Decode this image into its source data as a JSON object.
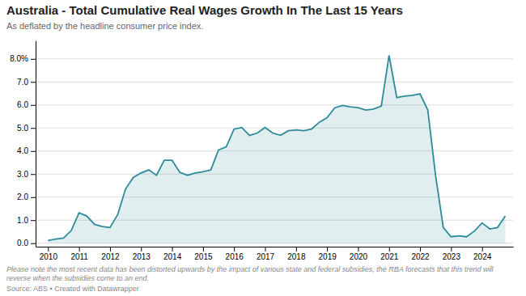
{
  "chart_data": {
    "type": "area",
    "title": "Australia - Total Cumulative Real Wages Growth In The Last 15 Years",
    "subtitle": "As deflated by the headline consumer price index.",
    "footnote": "Please note the most recent data has been distorted upwards by the impact of various state and federal subsidies, the RBA forecasts that this trend will\nreverse when the subsidies come to an end.",
    "source": "Source: ABS • Created with Datawrapper",
    "color": "#2e8b9a",
    "grid": true,
    "x": [
      2010.0,
      2010.25,
      2010.5,
      2010.75,
      2011.0,
      2011.25,
      2011.5,
      2011.75,
      2012.0,
      2012.25,
      2012.5,
      2012.75,
      2013.0,
      2013.25,
      2013.5,
      2013.75,
      2014.0,
      2014.25,
      2014.5,
      2014.75,
      2015.0,
      2015.25,
      2015.5,
      2015.75,
      2016.0,
      2016.25,
      2016.5,
      2016.75,
      2017.0,
      2017.25,
      2017.5,
      2017.75,
      2018.0,
      2018.25,
      2018.5,
      2018.75,
      2019.0,
      2019.25,
      2019.5,
      2019.75,
      2020.0,
      2020.25,
      2020.5,
      2020.75,
      2021.0,
      2021.25,
      2021.5,
      2021.75,
      2022.0,
      2022.25,
      2022.5,
      2022.75,
      2023.0,
      2023.25,
      2023.5,
      2023.75,
      2024.0,
      2024.25,
      2024.5,
      2024.75
    ],
    "values": [
      0.12,
      0.18,
      0.22,
      0.55,
      1.32,
      1.18,
      0.82,
      0.72,
      0.68,
      1.25,
      2.35,
      2.85,
      3.05,
      3.18,
      2.95,
      3.6,
      3.6,
      3.08,
      2.95,
      3.05,
      3.1,
      3.18,
      4.05,
      4.18,
      4.95,
      5.02,
      4.68,
      4.78,
      5.02,
      4.78,
      4.68,
      4.88,
      4.92,
      4.88,
      4.95,
      5.25,
      5.45,
      5.88,
      5.98,
      5.92,
      5.88,
      5.78,
      5.82,
      5.95,
      8.15,
      6.32,
      6.38,
      6.42,
      6.48,
      5.78,
      2.95,
      0.68,
      0.28,
      0.32,
      0.28,
      0.52,
      0.88,
      0.62,
      0.68,
      1.18
    ],
    "xlim": [
      2009.6,
      2025.0
    ],
    "xticks": [
      2010,
      2011,
      2012,
      2013,
      2014,
      2015,
      2016,
      2017,
      2018,
      2019,
      2020,
      2021,
      2022,
      2023,
      2024
    ],
    "ylim": [
      -0.15,
      8.8
    ],
    "yticks": [
      {
        "value": 0.0,
        "label": "0.0"
      },
      {
        "value": 1.0,
        "label": "1.0"
      },
      {
        "value": 2.0,
        "label": "2.0"
      },
      {
        "value": 3.0,
        "label": "3.0"
      },
      {
        "value": 4.0,
        "label": "4.0"
      },
      {
        "value": 5.0,
        "label": "5.0"
      },
      {
        "value": 6.0,
        "label": "6.0"
      },
      {
        "value": 7.0,
        "label": "7.0"
      },
      {
        "value": 8.0,
        "label": "8.0%"
      }
    ]
  }
}
